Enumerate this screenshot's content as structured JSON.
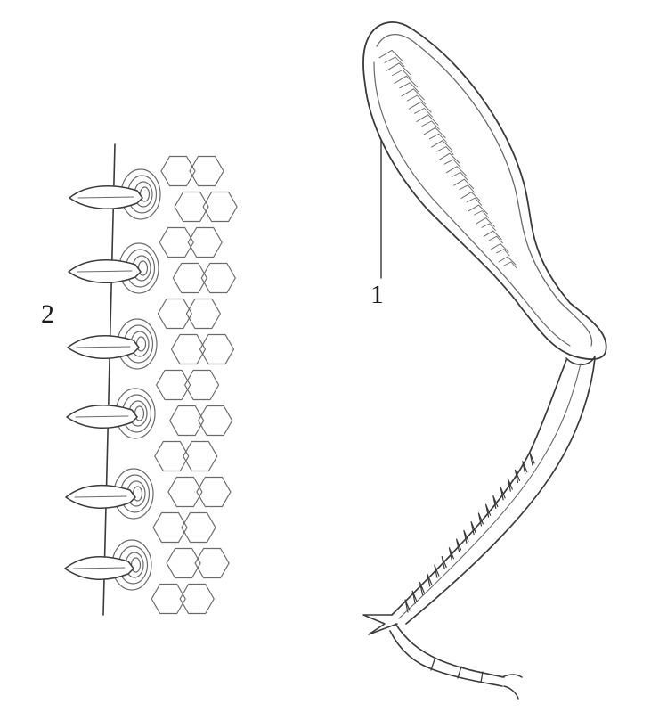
{
  "figure": {
    "labels": {
      "leg": "1",
      "spines": "2"
    },
    "colors": {
      "ink": "#3a3a3a",
      "background": "#ffffff"
    }
  }
}
